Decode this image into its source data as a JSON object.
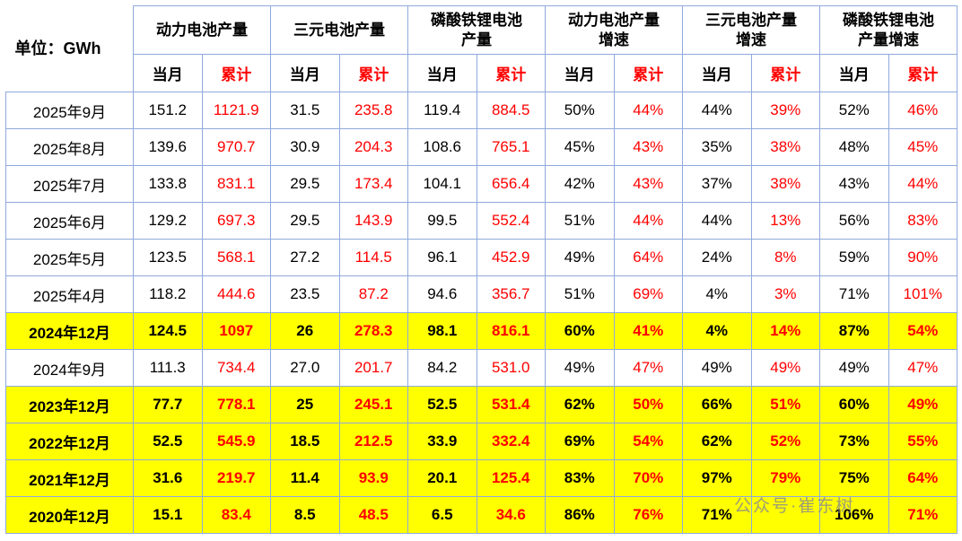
{
  "watermark": "公众号·崔东树",
  "chart_data": {
    "type": "table",
    "unit": "单位：GWh",
    "column_groups": [
      "动力电池产量",
      "三元电池产量",
      "磷酸铁锂电池\n产量",
      "动力电池产量\n增速",
      "三元电池产量\n增速",
      "磷酸铁锂电池\n产量增速"
    ],
    "sub_columns": [
      "当月",
      "累计"
    ],
    "rows": [
      {
        "month": "2025年9月",
        "highlight": false,
        "values": [
          "151.2",
          "1121.9",
          "31.5",
          "235.8",
          "119.4",
          "884.5",
          "50%",
          "44%",
          "44%",
          "39%",
          "52%",
          "46%"
        ]
      },
      {
        "month": "2025年8月",
        "highlight": false,
        "values": [
          "139.6",
          "970.7",
          "30.9",
          "204.3",
          "108.6",
          "765.1",
          "45%",
          "43%",
          "35%",
          "38%",
          "48%",
          "45%"
        ]
      },
      {
        "month": "2025年7月",
        "highlight": false,
        "values": [
          "133.8",
          "831.1",
          "29.5",
          "173.4",
          "104.1",
          "656.4",
          "42%",
          "43%",
          "37%",
          "38%",
          "43%",
          "44%"
        ]
      },
      {
        "month": "2025年6月",
        "highlight": false,
        "values": [
          "129.2",
          "697.3",
          "29.5",
          "143.9",
          "99.5",
          "552.4",
          "51%",
          "44%",
          "44%",
          "13%",
          "56%",
          "83%"
        ]
      },
      {
        "month": "2025年5月",
        "highlight": false,
        "values": [
          "123.5",
          "568.1",
          "27.2",
          "114.5",
          "96.1",
          "452.9",
          "49%",
          "64%",
          "24%",
          "8%",
          "59%",
          "90%"
        ]
      },
      {
        "month": "2025年4月",
        "highlight": false,
        "values": [
          "118.2",
          "444.6",
          "23.5",
          "87.2",
          "94.6",
          "356.7",
          "51%",
          "69%",
          "4%",
          "3%",
          "71%",
          "101%"
        ]
      },
      {
        "month": "2024年12月",
        "highlight": true,
        "values": [
          "124.5",
          "1097",
          "26",
          "278.3",
          "98.1",
          "816.1",
          "60%",
          "41%",
          "4%",
          "14%",
          "87%",
          "54%"
        ]
      },
      {
        "month": "2024年9月",
        "highlight": false,
        "values": [
          "111.3",
          "734.4",
          "27.0",
          "201.7",
          "84.2",
          "531.0",
          "49%",
          "47%",
          "49%",
          "49%",
          "49%",
          "47%"
        ]
      },
      {
        "month": "2023年12月",
        "highlight": true,
        "values": [
          "77.7",
          "778.1",
          "25",
          "245.1",
          "52.5",
          "531.4",
          "62%",
          "50%",
          "66%",
          "51%",
          "60%",
          "49%"
        ]
      },
      {
        "month": "2022年12月",
        "highlight": true,
        "values": [
          "52.5",
          "545.9",
          "18.5",
          "212.5",
          "33.9",
          "332.4",
          "69%",
          "54%",
          "62%",
          "52%",
          "73%",
          "55%"
        ]
      },
      {
        "month": "2021年12月",
        "highlight": true,
        "values": [
          "31.6",
          "219.7",
          "11.4",
          "93.9",
          "20.1",
          "125.4",
          "83%",
          "70%",
          "97%",
          "79%",
          "75%",
          "64%"
        ]
      },
      {
        "month": "2020年12月",
        "highlight": true,
        "values": [
          "15.1",
          "83.4",
          "8.5",
          "48.5",
          "6.5",
          "34.6",
          "86%",
          "76%",
          "71%",
          "",
          "106%",
          "71%"
        ]
      }
    ]
  }
}
